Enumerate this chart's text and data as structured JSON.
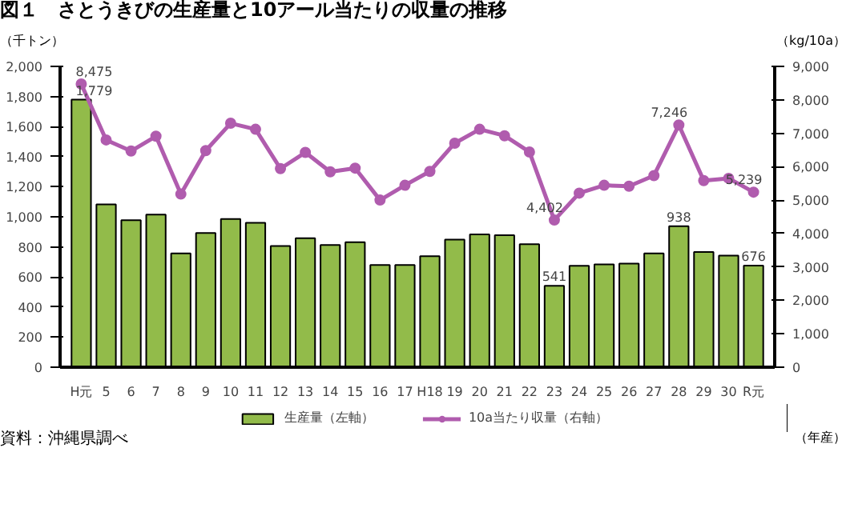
{
  "chart_data": {
    "type": "bar",
    "title": "図１　さとうきびの生産量と10アール当たりの収量の推移",
    "ylabel": "（千トン）",
    "y2label": "（kg/10a）",
    "xlabel": "（年産）",
    "annotations": [
      "資料：沖縄県調べ"
    ],
    "categories": [
      "H元",
      "5",
      "6",
      "7",
      "8",
      "9",
      "10",
      "11",
      "12",
      "13",
      "14",
      "15",
      "16",
      "17",
      "H18",
      "19",
      "20",
      "21",
      "22",
      "23",
      "24",
      "25",
      "26",
      "27",
      "28",
      "29",
      "30",
      "R元"
    ],
    "series": [
      {
        "name": "生産量（左軸）",
        "color": "#92bb4a",
        "values": [
          1779,
          1083,
          978,
          1015,
          757,
          892,
          985,
          960,
          806,
          858,
          812,
          831,
          680,
          680,
          738,
          849,
          883,
          877,
          818,
          541,
          674,
          683,
          689,
          757,
          938,
          766,
          742,
          676
        ],
        "value_labels": [
          "1,779",
          null,
          null,
          null,
          null,
          null,
          null,
          null,
          null,
          null,
          null,
          null,
          null,
          null,
          null,
          null,
          null,
          null,
          null,
          "541",
          null,
          null,
          null,
          null,
          "938",
          null,
          null,
          "676"
        ]
      },
      {
        "name": "10a当たり収量（右軸）",
        "type": "line",
        "axis": "y2",
        "color": "#b05cae",
        "marker": "circle",
        "values": [
          8475,
          6800,
          6468,
          6911,
          5180,
          6482,
          7299,
          7119,
          5942,
          6426,
          5845,
          5956,
          5000,
          5443,
          5859,
          6703,
          7119,
          6925,
          6440,
          4402,
          5208,
          5443,
          5415,
          5734,
          7246,
          5582,
          5651,
          5239
        ],
        "value_labels": [
          "8,475",
          null,
          null,
          null,
          null,
          null,
          null,
          null,
          null,
          null,
          null,
          null,
          null,
          null,
          null,
          null,
          null,
          null,
          null,
          "4,402",
          null,
          null,
          null,
          null,
          "7,246",
          null,
          null,
          "5,239"
        ]
      }
    ],
    "ylim": [
      0,
      2000
    ],
    "yticks": [
      {
        "value": 0,
        "label": "0"
      },
      {
        "value": 200,
        "label": "200"
      },
      {
        "value": 400,
        "label": "400"
      },
      {
        "value": 600,
        "label": "600"
      },
      {
        "value": 800,
        "label": "800"
      },
      {
        "value": 1000,
        "label": "1,000"
      },
      {
        "value": 1200,
        "label": "1,200"
      },
      {
        "value": 1400,
        "label": "1,400"
      },
      {
        "value": 1600,
        "label": "1,600"
      },
      {
        "value": 1800,
        "label": "1,800"
      },
      {
        "value": 2000,
        "label": "2,000"
      }
    ],
    "y2lim": [
      0,
      9000
    ],
    "y2ticks": [
      {
        "value": 0,
        "label": "0"
      },
      {
        "value": 1000,
        "label": "1,000"
      },
      {
        "value": 2000,
        "label": "2,000"
      },
      {
        "value": 3000,
        "label": "3,000"
      },
      {
        "value": 4000,
        "label": "4,000"
      },
      {
        "value": 5000,
        "label": "5,000"
      },
      {
        "value": 6000,
        "label": "6,000"
      },
      {
        "value": 7000,
        "label": "7,000"
      },
      {
        "value": 8000,
        "label": "8,000"
      },
      {
        "value": 9000,
        "label": "9,000"
      }
    ],
    "grid": false,
    "legend": "bottom"
  }
}
